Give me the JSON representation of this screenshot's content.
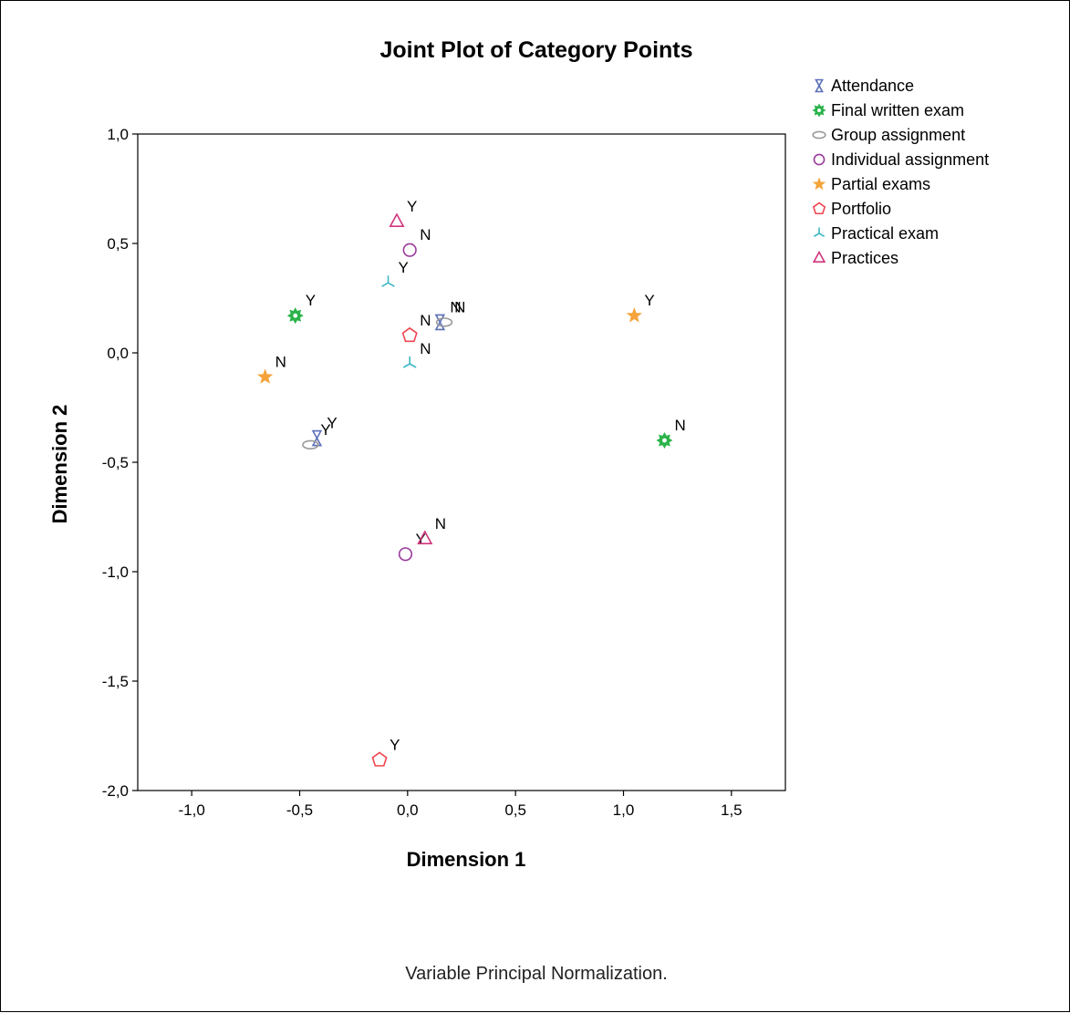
{
  "chart_data": {
    "type": "scatter",
    "title": "Joint Plot of Category Points",
    "xlabel": "Dimension 1",
    "ylabel": "Dimension 2",
    "footnote": "Variable Principal Normalization.",
    "xlim": [
      -1.25,
      1.75
    ],
    "ylim": [
      -2.0,
      1.0
    ],
    "xticks": [
      "-1,0",
      "-0,5",
      "0,0",
      "0,5",
      "1,0",
      "1,5"
    ],
    "xtick_values": [
      -1.0,
      -0.5,
      0.0,
      0.5,
      1.0,
      1.5
    ],
    "yticks": [
      "1,0",
      "0,5",
      "0,0",
      "-0,5",
      "-1,0",
      "-1,5",
      "-2,0"
    ],
    "ytick_values": [
      1.0,
      0.5,
      0.0,
      -0.5,
      -1.0,
      -1.5,
      -2.0
    ],
    "grid": false,
    "legend_position": "top-right outside plot",
    "series": [
      {
        "name": "Attendance",
        "marker": "hourglass",
        "color": "#5a6fb8",
        "points": [
          {
            "x": 0.15,
            "y": 0.14,
            "label": "N"
          },
          {
            "x": -0.42,
            "y": -0.39,
            "label": "Y"
          }
        ]
      },
      {
        "name": "Final written exam",
        "marker": "gear",
        "color": "#2bb34a",
        "points": [
          {
            "x": -0.52,
            "y": 0.17,
            "label": "Y"
          },
          {
            "x": 1.19,
            "y": -0.4,
            "label": "N"
          }
        ]
      },
      {
        "name": "Group assignment",
        "marker": "ellipse",
        "color": "#999999",
        "points": [
          {
            "x": 0.17,
            "y": 0.14,
            "label": "N"
          },
          {
            "x": -0.45,
            "y": -0.42,
            "label": "Y"
          }
        ]
      },
      {
        "name": "Individual assignment",
        "marker": "circle",
        "color": "#9a3a9a",
        "points": [
          {
            "x": 0.01,
            "y": 0.47,
            "label": "N"
          },
          {
            "x": -0.01,
            "y": -0.92,
            "label": "Y"
          }
        ]
      },
      {
        "name": "Partial exams",
        "marker": "star",
        "color": "#f5a33a",
        "points": [
          {
            "x": 1.05,
            "y": 0.17,
            "label": "Y"
          },
          {
            "x": -0.66,
            "y": -0.11,
            "label": "N"
          }
        ]
      },
      {
        "name": "Portfolio",
        "marker": "pentagon",
        "color": "#f0454f",
        "points": [
          {
            "x": 0.01,
            "y": 0.08,
            "label": "N"
          },
          {
            "x": -0.13,
            "y": -1.86,
            "label": "Y"
          }
        ]
      },
      {
        "name": "Practical exam",
        "marker": "tri-spoke",
        "color": "#3fb8c6",
        "points": [
          {
            "x": -0.09,
            "y": 0.32,
            "label": "Y"
          },
          {
            "x": 0.01,
            "y": -0.05,
            "label": "N"
          }
        ]
      },
      {
        "name": "Practices",
        "marker": "triangle",
        "color": "#d1357c",
        "points": [
          {
            "x": -0.05,
            "y": 0.6,
            "label": "Y"
          },
          {
            "x": 0.08,
            "y": -0.85,
            "label": "N"
          }
        ]
      }
    ]
  }
}
